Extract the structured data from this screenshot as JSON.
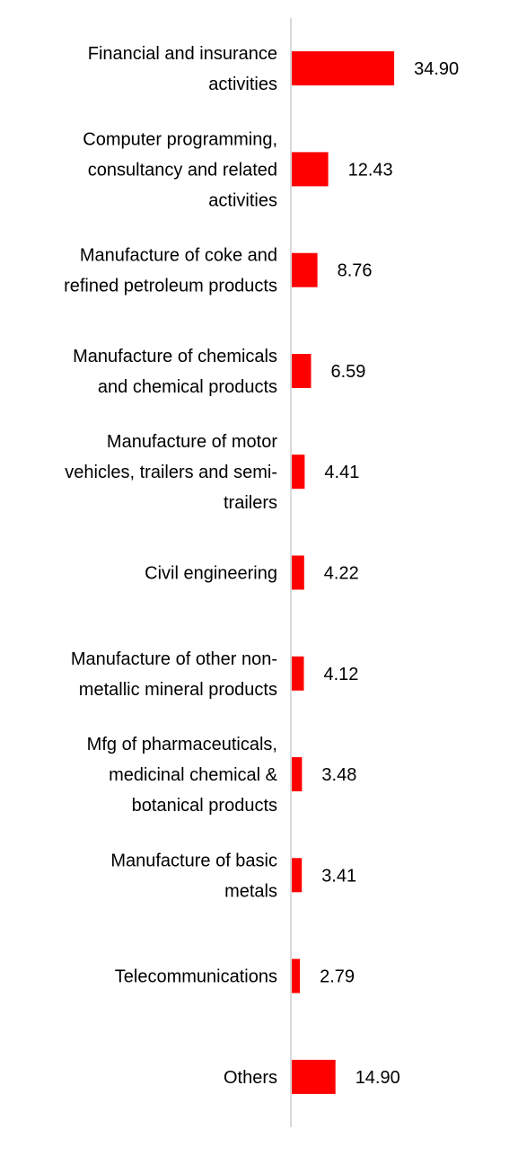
{
  "chart_data": {
    "type": "bar",
    "orientation": "horizontal",
    "categories": [
      [
        "Financial and insurance",
        "activities"
      ],
      [
        "Computer programming,",
        "consultancy and related",
        "activities"
      ],
      [
        "Manufacture of coke and",
        "refined petroleum products"
      ],
      [
        "Manufacture of chemicals",
        "and chemical products"
      ],
      [
        "Manufacture of motor",
        "vehicles, trailers and semi-",
        "trailers"
      ],
      [
        "Civil engineering"
      ],
      [
        "Manufacture of other non-",
        "metallic mineral products"
      ],
      [
        "Mfg of pharmaceuticals,",
        "medicinal chemical &",
        "botanical products"
      ],
      [
        "Manufacture of basic",
        "metals"
      ],
      [
        "Telecommunications"
      ],
      [
        "Others"
      ]
    ],
    "values": [
      34.9,
      12.43,
      8.76,
      6.59,
      4.41,
      4.22,
      4.12,
      3.48,
      3.41,
      2.79,
      14.9
    ],
    "value_labels": [
      "34.90",
      "12.43",
      "8.76",
      "6.59",
      "4.41",
      "4.22",
      "4.12",
      "3.48",
      "3.41",
      "2.79",
      "14.90"
    ],
    "bar_color": "#ff0000",
    "axis_color": "#d9d9d9",
    "grid": false,
    "legend": "none",
    "title": "",
    "xlabel": "",
    "ylabel": ""
  }
}
